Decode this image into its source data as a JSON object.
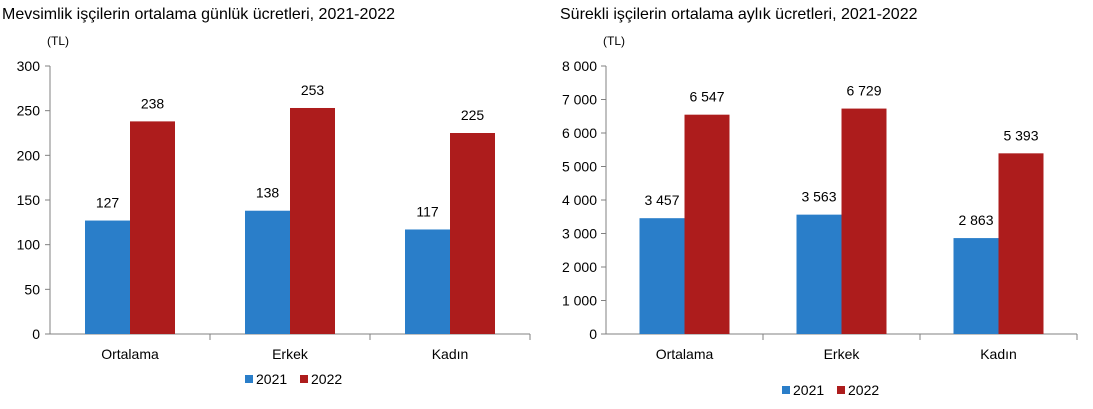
{
  "colors": {
    "s2021": "#2a7ec9",
    "s2022": "#ad1c1c",
    "axis": "#808080"
  },
  "chart_data": [
    {
      "type": "bar",
      "title": "Mevsimlik işçilerin ortalama günlük ücretleri, 2021-2022",
      "unit": "(TL)",
      "categories": [
        "Ortalama",
        "Erkek",
        "Kadın"
      ],
      "series": [
        {
          "name": "2021",
          "values": [
            127,
            138,
            117
          ],
          "labels": [
            "127",
            "138",
            "117"
          ]
        },
        {
          "name": "2022",
          "values": [
            238,
            253,
            225
          ],
          "labels": [
            "238",
            "253",
            "225"
          ]
        }
      ],
      "ylim": [
        0,
        300
      ],
      "yticks": [
        0,
        50,
        100,
        150,
        200,
        250,
        300
      ],
      "ytick_labels": [
        "0",
        "50",
        "100",
        "150",
        "200",
        "250",
        "300"
      ],
      "grid": false,
      "legend": "bottom"
    },
    {
      "type": "bar",
      "title": "Sürekli işçilerin ortalama aylık ücretleri, 2021-2022",
      "unit": "(TL)",
      "categories": [
        "Ortalama",
        "Erkek",
        "Kadın"
      ],
      "series": [
        {
          "name": "2021",
          "values": [
            3457,
            3563,
            2863
          ],
          "labels": [
            "3 457",
            "3 563",
            "2 863"
          ]
        },
        {
          "name": "2022",
          "values": [
            6547,
            6729,
            5393
          ],
          "labels": [
            "6 547",
            "6 729",
            "5 393"
          ]
        }
      ],
      "ylim": [
        0,
        8000
      ],
      "yticks": [
        0,
        1000,
        2000,
        3000,
        4000,
        5000,
        6000,
        7000,
        8000
      ],
      "ytick_labels": [
        "0",
        "1 000",
        "2 000",
        "3 000",
        "4 000",
        "5 000",
        "6 000",
        "7 000",
        "8 000"
      ],
      "grid": false,
      "legend": "bottom"
    }
  ]
}
